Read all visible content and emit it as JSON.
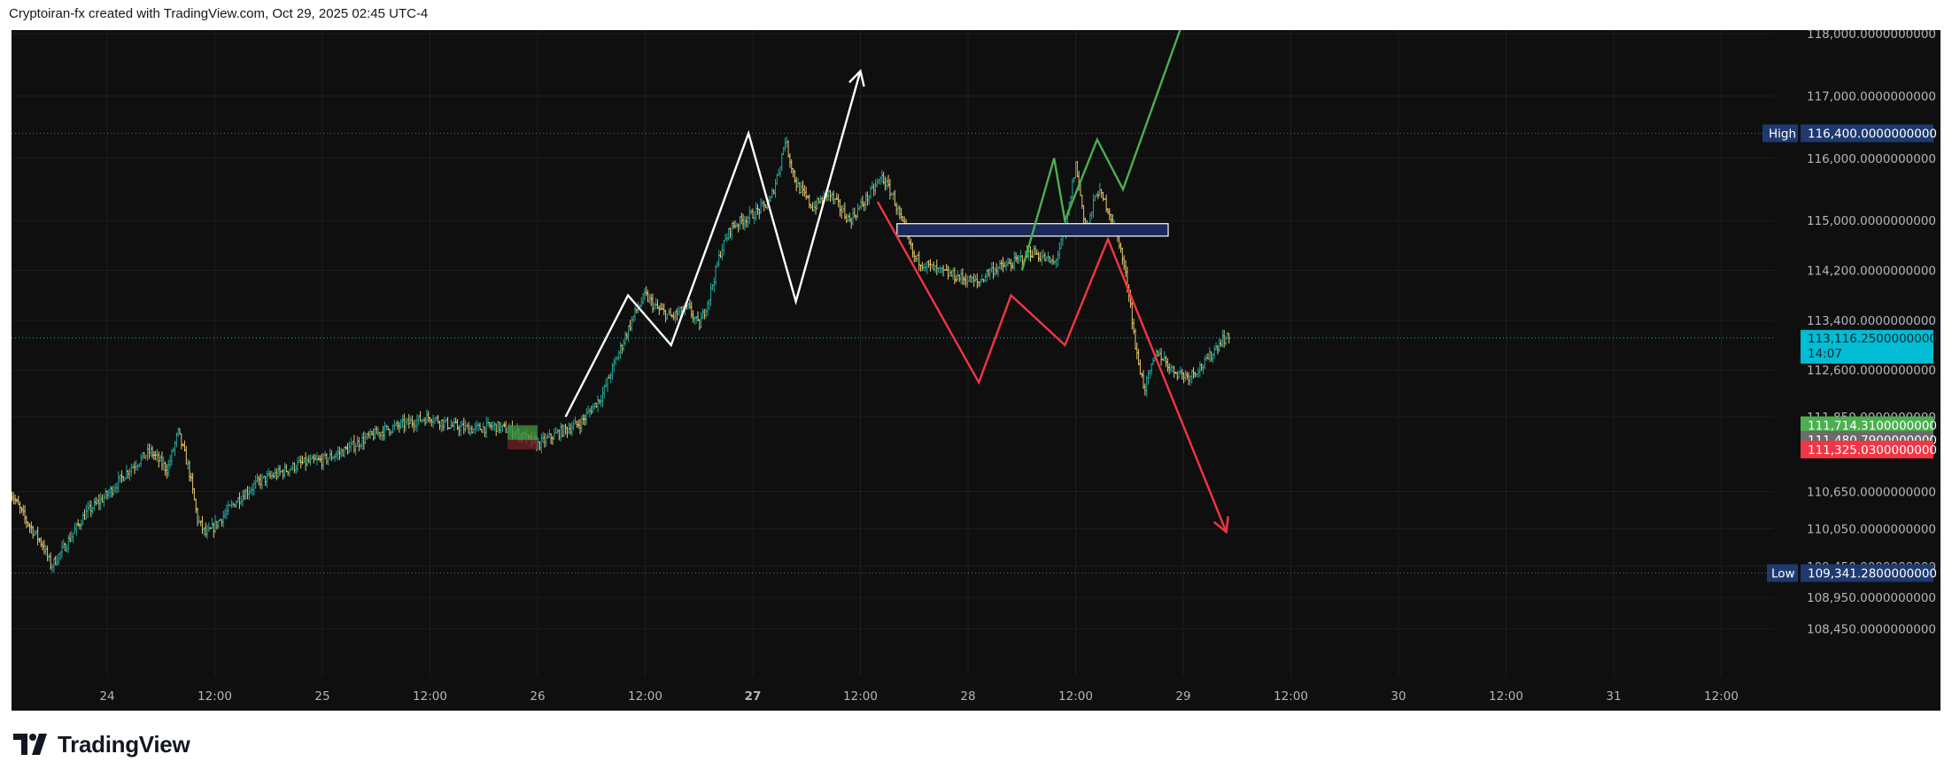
{
  "header": {
    "text": "Cryptoiran-fx created with TradingView.com, Oct 29, 2025 02:45 UTC-4"
  },
  "footer": {
    "brand": "TradingView",
    "logo_icon": "tradingview-logo-icon"
  },
  "colors": {
    "background": "#0f0f0f",
    "grid": "#1e1e1e",
    "candle_up": "#26a69a",
    "candle_down": "#e8c96a",
    "white_path": "#ffffff",
    "green_path": "#4caf50",
    "red_path": "#f23645",
    "box_fill": "#1b2a5a",
    "last_price": "#00bcd4",
    "marker_green": "#4caf50",
    "marker_gray": "#6b6b6b",
    "marker_red": "#f23645",
    "high_low_tag": "#1e3a6e"
  },
  "chart_data": {
    "type": "candlestick",
    "title": "",
    "ylim": [
      108000,
      118000
    ],
    "y_ticks": [
      "118,000.0000000000",
      "117,000.0000000000",
      "116,000.0000000000",
      "115,000.0000000000",
      "114,200.0000000000",
      "113,400.0000000000",
      "112,600.0000000000",
      "111,850.0000000000",
      "110,650.0000000000",
      "110,050.0000000000",
      "109,450.0000000000",
      "108,950.0000000000",
      "108,450.0000000000"
    ],
    "y_tick_values": [
      118000,
      117000,
      116000,
      115000,
      114200,
      113400,
      112600,
      111850,
      110650,
      110050,
      109450,
      108950,
      108450
    ],
    "x_ticks": [
      "24",
      "12:00",
      "25",
      "12:00",
      "26",
      "12:00",
      "27",
      "12:00",
      "28",
      "12:00",
      "29",
      "12:00",
      "30",
      "12:00",
      "31",
      "12:00"
    ],
    "x_tick_times": [
      1,
      1.5,
      2,
      2.5,
      3,
      3.5,
      4,
      4.5,
      5,
      5.5,
      6,
      6.5,
      7,
      7.5,
      8,
      8.5
    ],
    "x_bold": [
      false,
      false,
      false,
      false,
      false,
      false,
      true,
      false,
      false,
      false,
      false,
      false,
      false,
      false,
      false,
      false
    ],
    "xlim": [
      0.55,
      9.4
    ],
    "price_path": [
      [
        0.55,
        110650
      ],
      [
        0.62,
        110200
      ],
      [
        0.7,
        109800
      ],
      [
        0.74,
        109450
      ],
      [
        0.8,
        109750
      ],
      [
        0.9,
        110300
      ],
      [
        1.0,
        110600
      ],
      [
        1.1,
        111000
      ],
      [
        1.2,
        111300
      ],
      [
        1.28,
        111000
      ],
      [
        1.33,
        111600
      ],
      [
        1.38,
        111000
      ],
      [
        1.42,
        110200
      ],
      [
        1.46,
        109950
      ],
      [
        1.5,
        110100
      ],
      [
        1.6,
        110500
      ],
      [
        1.7,
        110800
      ],
      [
        1.8,
        110950
      ],
      [
        1.9,
        111100
      ],
      [
        2.0,
        111150
      ],
      [
        2.1,
        111300
      ],
      [
        2.2,
        111500
      ],
      [
        2.3,
        111650
      ],
      [
        2.4,
        111750
      ],
      [
        2.5,
        111850
      ],
      [
        2.6,
        111700
      ],
      [
        2.7,
        111650
      ],
      [
        2.8,
        111700
      ],
      [
        2.9,
        111600
      ],
      [
        3.0,
        111400
      ],
      [
        3.1,
        111600
      ],
      [
        3.2,
        111750
      ],
      [
        3.3,
        112200
      ],
      [
        3.38,
        112900
      ],
      [
        3.45,
        113500
      ],
      [
        3.5,
        113800
      ],
      [
        3.55,
        113600
      ],
      [
        3.62,
        113450
      ],
      [
        3.7,
        113600
      ],
      [
        3.75,
        113300
      ],
      [
        3.8,
        113800
      ],
      [
        3.85,
        114500
      ],
      [
        3.9,
        114900
      ],
      [
        4.0,
        115100
      ],
      [
        4.08,
        115300
      ],
      [
        4.12,
        115800
      ],
      [
        4.15,
        116300
      ],
      [
        4.2,
        115600
      ],
      [
        4.28,
        115200
      ],
      [
        4.35,
        115450
      ],
      [
        4.45,
        115000
      ],
      [
        4.55,
        115450
      ],
      [
        4.6,
        115700
      ],
      [
        4.65,
        115400
      ],
      [
        4.75,
        114400
      ],
      [
        4.85,
        114200
      ],
      [
        4.95,
        114100
      ],
      [
        5.05,
        114000
      ],
      [
        5.1,
        114200
      ],
      [
        5.2,
        114300
      ],
      [
        5.3,
        114500
      ],
      [
        5.4,
        114300
      ],
      [
        5.45,
        114800
      ],
      [
        5.5,
        115900
      ],
      [
        5.55,
        114800
      ],
      [
        5.6,
        115500
      ],
      [
        5.65,
        115200
      ],
      [
        5.7,
        114700
      ],
      [
        5.75,
        113800
      ],
      [
        5.78,
        112900
      ],
      [
        5.82,
        112300
      ],
      [
        5.88,
        112900
      ],
      [
        5.95,
        112600
      ],
      [
        6.02,
        112500
      ],
      [
        6.1,
        112700
      ],
      [
        6.18,
        113100
      ],
      [
        6.22,
        113116
      ]
    ],
    "white_path": [
      [
        3.13,
        111850
      ],
      [
        3.42,
        113800
      ],
      [
        3.62,
        113000
      ],
      [
        3.98,
        116400
      ],
      [
        4.2,
        113700
      ],
      [
        4.5,
        117400
      ]
    ],
    "green_path": [
      [
        5.25,
        114200
      ],
      [
        5.4,
        116000
      ],
      [
        5.45,
        115000
      ],
      [
        5.6,
        116300
      ],
      [
        5.72,
        115500
      ],
      [
        6.0,
        118200
      ]
    ],
    "red_path": [
      [
        4.58,
        115300
      ],
      [
        5.05,
        112400
      ],
      [
        5.2,
        113800
      ],
      [
        5.45,
        113000
      ],
      [
        5.65,
        114700
      ],
      [
        6.2,
        110000
      ]
    ],
    "zone_box": {
      "x0": 4.67,
      "x1": 5.93,
      "y0": 114750,
      "y1": 114950
    },
    "order_box": {
      "x0": 2.86,
      "x1": 3.0,
      "y0": 111325,
      "y1": 111714.31
    },
    "high": {
      "label": "High",
      "value": 116400,
      "text": "116,400.0000000000"
    },
    "low": {
      "label": "Low",
      "value": 109341.28,
      "text": "109,341.2800000000"
    },
    "last_price": {
      "value": 113116.25,
      "text": "113,116.2500000000",
      "countdown": "14:07"
    },
    "markers": [
      {
        "value": 111714.31,
        "text": "111,714.3100000000",
        "color": "#4caf50"
      },
      {
        "value": 111480.79,
        "text": "111,480.7900000000",
        "color": "#6b6b6b"
      },
      {
        "value": 111325.03,
        "text": "111,325.0300000000",
        "color": "#f23645"
      }
    ]
  }
}
